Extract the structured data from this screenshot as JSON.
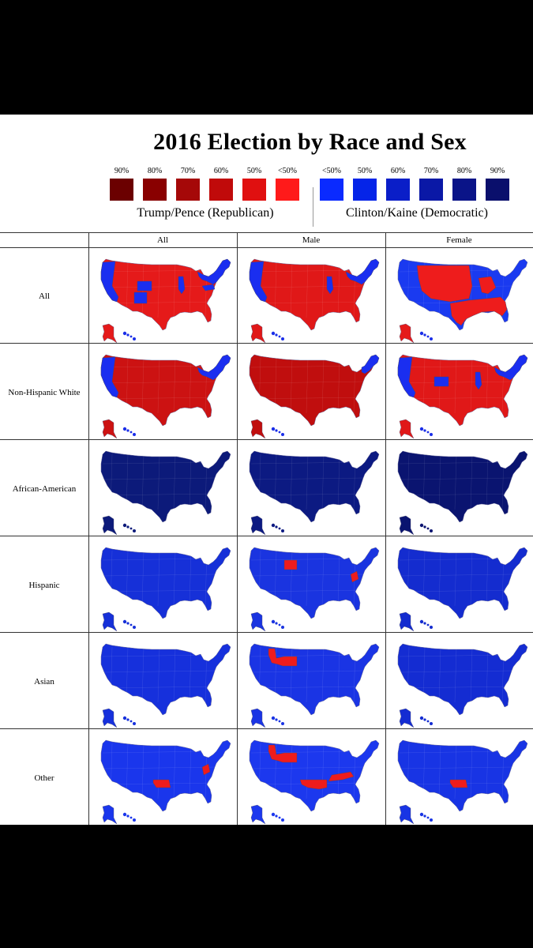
{
  "title": "2016 Election by Race and Sex",
  "legend": {
    "republican": {
      "name": "Trump/Pence (Republican)",
      "swatches": [
        {
          "label": "90%",
          "color": "#6b0000"
        },
        {
          "label": "80%",
          "color": "#890000"
        },
        {
          "label": "70%",
          "color": "#a50808"
        },
        {
          "label": "60%",
          "color": "#c00a0a"
        },
        {
          "label": "50%",
          "color": "#e01010"
        },
        {
          "label": "<50%",
          "color": "#ff1a1a"
        }
      ]
    },
    "democratic": {
      "name": "Clinton/Kaine (Democratic)",
      "swatches": [
        {
          "label": "<50%",
          "color": "#0a2aff"
        },
        {
          "label": "50%",
          "color": "#0524e8"
        },
        {
          "label": "60%",
          "color": "#0a1ec8"
        },
        {
          "label": "70%",
          "color": "#0a18a6"
        },
        {
          "label": "80%",
          "color": "#0a1488"
        },
        {
          "label": "90%",
          "color": "#0a0f6c"
        }
      ]
    }
  },
  "columns": [
    "All",
    "Male",
    "Female"
  ],
  "rows": [
    "All",
    "Non-Hispanic White",
    "African-American",
    "Hispanic",
    "Asian",
    "Other"
  ],
  "maps": [
    [
      {
        "base": "#e51a1a",
        "blue": [
          "west_coast",
          "colorado",
          "new_mexico",
          "illinois",
          "northeast",
          "virginia"
        ],
        "red": [],
        "alaska": "#e51a1a",
        "hawaii": "#1a2ee8"
      },
      {
        "base": "#e01818",
        "blue": [
          "west_coast",
          "illinois",
          "northeast"
        ],
        "red": [],
        "alaska": "#e01818",
        "hawaii": "#1a2ee8"
      },
      {
        "base": "#1a3af0",
        "blue": [],
        "red": [
          "mountain_plains",
          "south",
          "midwest_red"
        ],
        "alaska": "#e51a1a",
        "hawaii": "#1a2ee8"
      }
    ],
    [
      {
        "base": "#cc1212",
        "blue": [
          "west_coast",
          "northeast"
        ],
        "red": [],
        "alaska": "#cc1212",
        "hawaii": "#1a2ee8"
      },
      {
        "base": "#c00e0e",
        "blue": [
          "northeast_small"
        ],
        "red": [],
        "alaska": "#c00e0e",
        "hawaii": "#1a2ee8"
      },
      {
        "base": "#e01818",
        "blue": [
          "west_coast",
          "colorado",
          "northeast",
          "illinois"
        ],
        "red": [],
        "alaska": "#e01818",
        "hawaii": "#1a2ee8"
      }
    ],
    [
      {
        "base": "#0c1a7a",
        "blue": [],
        "red": [],
        "alaska": "#0c1a7a",
        "hawaii": "#0c1a7a"
      },
      {
        "base": "#0c1a82",
        "blue": [],
        "red": [],
        "alaska": "#0c1a82",
        "hawaii": "#0c1a82"
      },
      {
        "base": "#0a1470",
        "blue": [],
        "red": [],
        "alaska": "#0a1470",
        "hawaii": "#0a1470"
      }
    ],
    [
      {
        "base": "#1630d8",
        "blue": [],
        "red": [],
        "alaska": "#1630d8",
        "hawaii": "#1630d8"
      },
      {
        "base": "#1a34e0",
        "blue": [],
        "red": [
          "wyoming",
          "west_virginia"
        ],
        "alaska": "#1a34e0",
        "hawaii": "#1a34e0"
      },
      {
        "base": "#142ccf",
        "blue": [],
        "red": [],
        "alaska": "#142ccf",
        "hawaii": "#142ccf"
      }
    ],
    [
      {
        "base": "#1630dc",
        "blue": [],
        "red": [],
        "alaska": "#1630dc",
        "hawaii": "#1630dc"
      },
      {
        "base": "#1a34e4",
        "blue": [],
        "red": [
          "idaho_wyoming"
        ],
        "alaska": "#1a34e4",
        "hawaii": "#1a34e4"
      },
      {
        "base": "#142cd2",
        "blue": [],
        "red": [],
        "alaska": "#142cd2",
        "hawaii": "#142cd2"
      }
    ],
    [
      {
        "base": "#1a36ec",
        "blue": [],
        "red": [
          "oklahoma",
          "west_virginia"
        ],
        "alaska": "#1a36ec",
        "hawaii": "#1a36ec"
      },
      {
        "base": "#1c38ee",
        "blue": [],
        "red": [
          "idaho_wyoming",
          "oklahoma_arkansas",
          "kentucky_tennessee"
        ],
        "alaska": "#1c38ee",
        "hawaii": "#1c38ee"
      },
      {
        "base": "#1834e4",
        "blue": [],
        "red": [
          "oklahoma"
        ],
        "alaska": "#1834e4",
        "hawaii": "#1834e4"
      }
    ]
  ],
  "colors": {
    "blue_region": "#1a2ef0",
    "red_region": "#ee1c1c"
  }
}
